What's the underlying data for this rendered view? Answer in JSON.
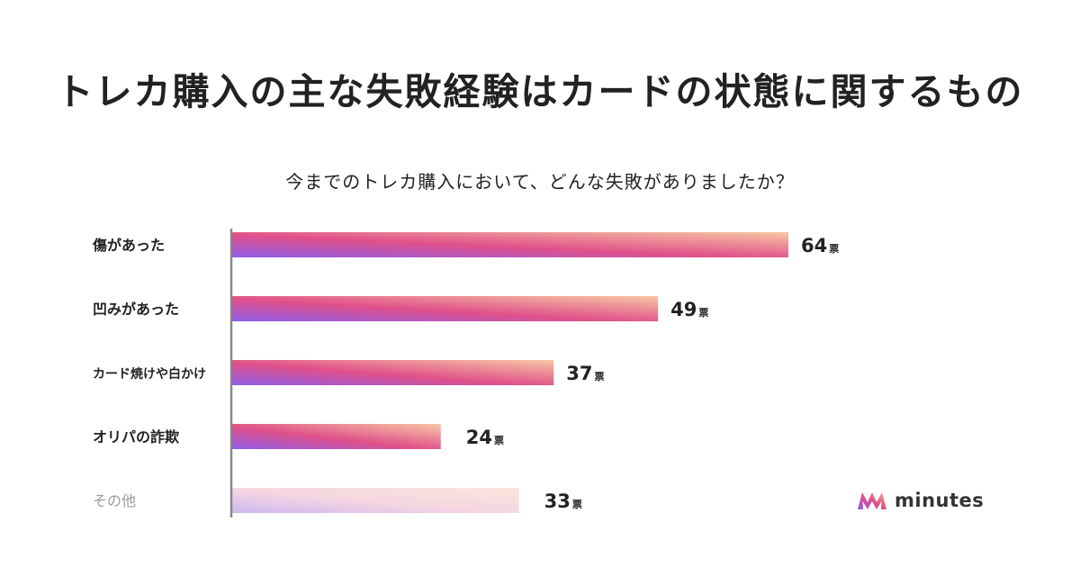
{
  "title": "トレカ購入の主な失敗経験はカードの状態に関するもの",
  "subtitle": "今までのトレカ購入において、どんな失敗がありましたか？",
  "chart_data": {
    "type": "bar",
    "orientation": "horizontal",
    "categories": [
      "傷があった",
      "凹みがあった",
      "カード焼けや白かけ",
      "オリパの詐欺",
      "その他"
    ],
    "values": [
      64,
      49,
      37,
      24,
      33
    ],
    "value_unit": "票",
    "muted_categories": [
      "その他"
    ],
    "gradient_colors": [
      "#8f5ce8",
      "#e0508a",
      "#f8c7a4"
    ],
    "muted_gradient_colors": [
      "#cdb8ee",
      "#f5d5e2",
      "#fbe6dc"
    ]
  },
  "brand": {
    "name": "minutes"
  }
}
